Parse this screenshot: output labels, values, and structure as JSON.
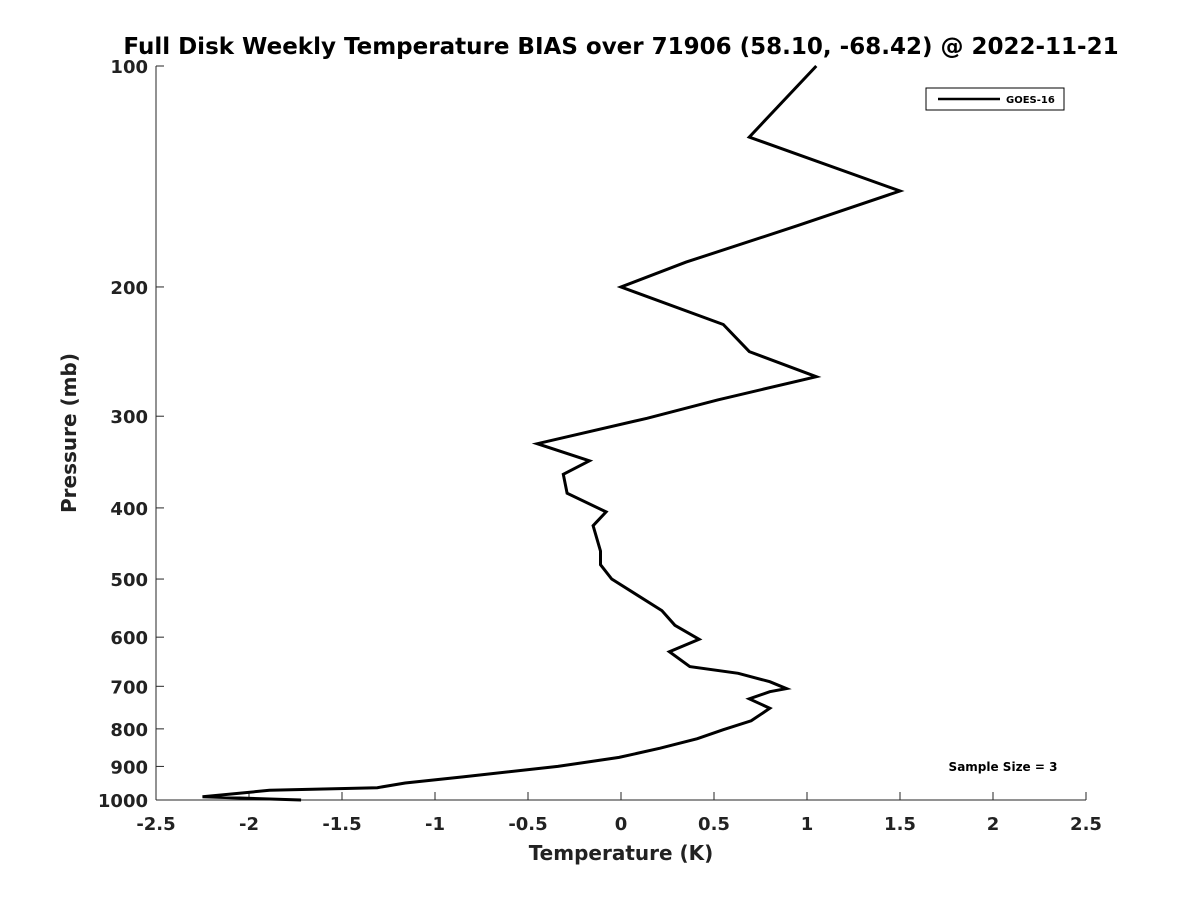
{
  "chart_data": {
    "type": "line",
    "title": "Full Disk Weekly Temperature BIAS over 71906 (58.10, -68.42) @ 2022-11-21",
    "xlabel": "Temperature (K)",
    "ylabel": "Pressure (mb)",
    "xlim": [
      -2.5,
      2.5
    ],
    "ylim": [
      100,
      1000
    ],
    "y_scale": "log",
    "y_reversed": true,
    "grid": false,
    "legend_position": "top-right",
    "xticks": [
      -2.5,
      -2,
      -1.5,
      -1,
      -0.5,
      0,
      0.5,
      1,
      1.5,
      2,
      2.5
    ],
    "xtick_labels": [
      "-2.5",
      "-2",
      "-1.5",
      "-1",
      "-0.5",
      "0",
      "0.5",
      "1",
      "1.5",
      "2",
      "2.5"
    ],
    "yticks": [
      100,
      200,
      300,
      400,
      500,
      600,
      700,
      800,
      900,
      1000
    ],
    "ytick_labels": [
      "100",
      "200",
      "300",
      "400",
      "500",
      "600",
      "700",
      "800",
      "900",
      "1000"
    ],
    "annotation": "Sample Size = 3",
    "series": [
      {
        "name": "GOES-16",
        "color": "#000000",
        "points": [
          {
            "x": 1.05,
            "y": 100
          },
          {
            "x": 0.69,
            "y": 125
          },
          {
            "x": 1.5,
            "y": 148
          },
          {
            "x": 0.95,
            "y": 165
          },
          {
            "x": 0.35,
            "y": 185
          },
          {
            "x": 0.0,
            "y": 200
          },
          {
            "x": 0.55,
            "y": 225
          },
          {
            "x": 0.69,
            "y": 245
          },
          {
            "x": 1.05,
            "y": 265
          },
          {
            "x": 0.52,
            "y": 285
          },
          {
            "x": 0.14,
            "y": 302
          },
          {
            "x": -0.45,
            "y": 327
          },
          {
            "x": -0.17,
            "y": 345
          },
          {
            "x": -0.31,
            "y": 360
          },
          {
            "x": -0.29,
            "y": 382
          },
          {
            "x": -0.08,
            "y": 405
          },
          {
            "x": -0.15,
            "y": 423
          },
          {
            "x": -0.11,
            "y": 458
          },
          {
            "x": -0.11,
            "y": 478
          },
          {
            "x": -0.05,
            "y": 500
          },
          {
            "x": 0.22,
            "y": 552
          },
          {
            "x": 0.29,
            "y": 578
          },
          {
            "x": 0.42,
            "y": 604
          },
          {
            "x": 0.26,
            "y": 628
          },
          {
            "x": 0.37,
            "y": 658
          },
          {
            "x": 0.63,
            "y": 672
          },
          {
            "x": 0.8,
            "y": 690
          },
          {
            "x": 0.89,
            "y": 705
          },
          {
            "x": 0.8,
            "y": 712
          },
          {
            "x": 0.69,
            "y": 728
          },
          {
            "x": 0.8,
            "y": 750
          },
          {
            "x": 0.7,
            "y": 780
          },
          {
            "x": 0.55,
            "y": 802
          },
          {
            "x": 0.41,
            "y": 825
          },
          {
            "x": 0.21,
            "y": 850
          },
          {
            "x": -0.01,
            "y": 875
          },
          {
            "x": -0.34,
            "y": 900
          },
          {
            "x": -0.85,
            "y": 930
          },
          {
            "x": -1.16,
            "y": 948
          },
          {
            "x": -1.31,
            "y": 962
          },
          {
            "x": -1.89,
            "y": 970
          },
          {
            "x": -2.25,
            "y": 990
          },
          {
            "x": -1.72,
            "y": 1000
          }
        ]
      }
    ]
  }
}
